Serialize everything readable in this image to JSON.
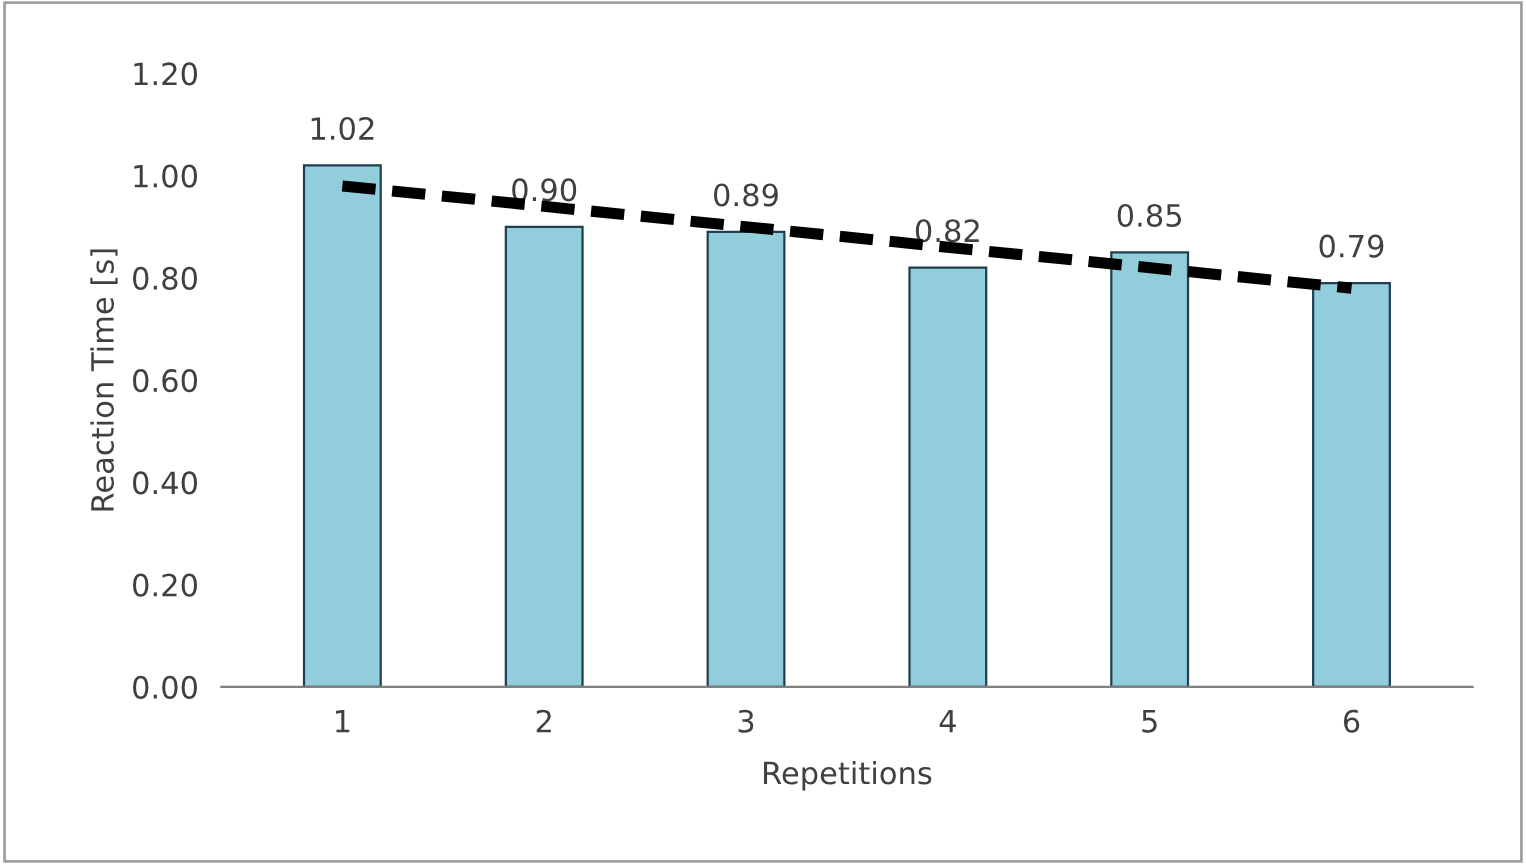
{
  "chart_data": {
    "type": "bar",
    "xlabel": "Repetitions",
    "ylabel": "Reaction Time [s]",
    "categories": [
      "1",
      "2",
      "3",
      "4",
      "5",
      "6"
    ],
    "series": [
      {
        "color": "#92cddc",
        "values": [
          1.02,
          0.9,
          0.89,
          0.82,
          0.85,
          0.79
        ],
        "value_labels": [
          "1.02",
          "0.90",
          "0.89",
          "0.82",
          "0.85",
          "0.79"
        ]
      },
      {
        "type": "line",
        "color": "#000000",
        "x": [
          "1",
          "6"
        ],
        "values": [
          0.98,
          0.78
        ],
        "line_style": "dashed"
      }
    ],
    "ylim": [
      0,
      1.2
    ],
    "yticks": [
      {
        "value": 0,
        "label": "0.00"
      },
      {
        "value": 0.2,
        "label": "0.20"
      },
      {
        "value": 0.4,
        "label": "0.40"
      },
      {
        "value": 0.6,
        "label": "0.60"
      },
      {
        "value": 0.8,
        "label": "0.80"
      },
      {
        "value": 1.0,
        "label": "1.00"
      },
      {
        "value": 1.2,
        "label": "1.20"
      }
    ],
    "grid": false,
    "legend": false
  }
}
